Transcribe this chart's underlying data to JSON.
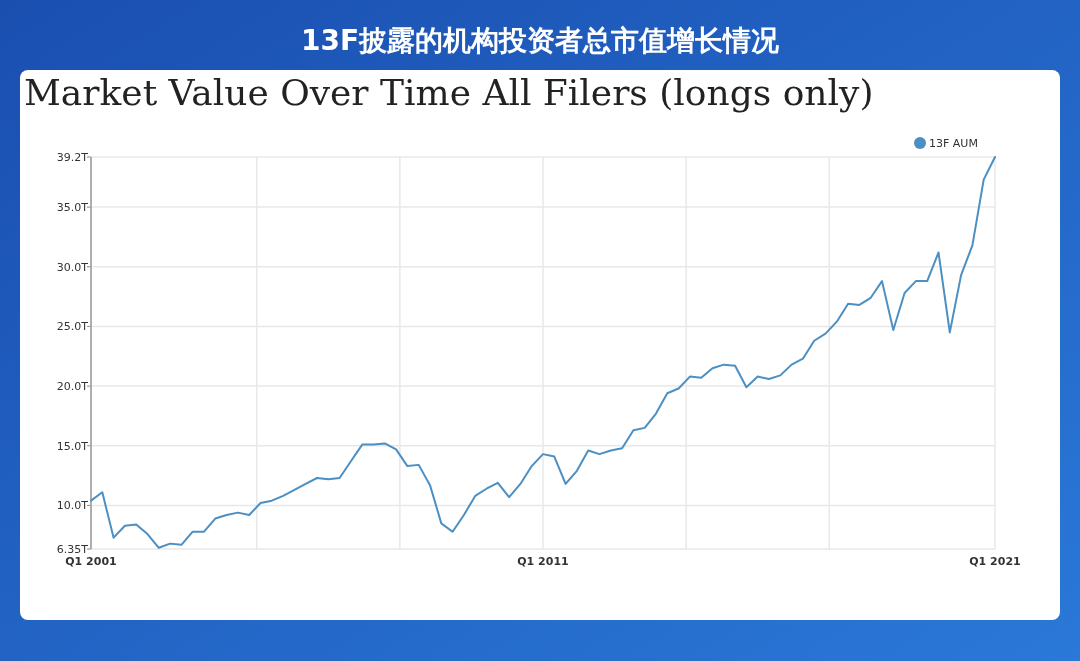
{
  "chart_data": {
    "type": "line",
    "title": "13F披露的机构投资者总市值增长情况",
    "subtitle": "Market Value Over Time All Filers (longs only)",
    "x": [
      "2001-01",
      "2001-04",
      "2001-07",
      "2001-10",
      "2002-01",
      "2002-04",
      "2002-07",
      "2002-10",
      "2003-01",
      "2003-04",
      "2003-07",
      "2003-10",
      "2004-01",
      "2004-04",
      "2004-07",
      "2004-10",
      "2005-01",
      "2005-04",
      "2005-07",
      "2005-10",
      "2006-01",
      "2006-04",
      "2006-07",
      "2006-10",
      "2007-01",
      "2007-04",
      "2007-07",
      "2007-10",
      "2008-01",
      "2008-04",
      "2008-07",
      "2008-10",
      "2009-01",
      "2009-04",
      "2009-07",
      "2009-10",
      "2010-01",
      "2010-04",
      "2010-07",
      "2010-10",
      "2011-01",
      "2011-04",
      "2011-07",
      "2011-10",
      "2012-01",
      "2012-04",
      "2012-07",
      "2012-10",
      "2013-01",
      "2013-04",
      "2013-07",
      "2013-10",
      "2014-01",
      "2014-04",
      "2014-07",
      "2014-10",
      "2015-01",
      "2015-04",
      "2015-07",
      "2015-10",
      "2016-01",
      "2016-04",
      "2016-07",
      "2016-10",
      "2017-01",
      "2017-04",
      "2017-07",
      "2017-10",
      "2018-01",
      "2018-04",
      "2018-07",
      "2018-10",
      "2019-01",
      "2019-04",
      "2019-07",
      "2019-10",
      "2020-01",
      "2020-04",
      "2020-07",
      "2020-10",
      "2021-01"
    ],
    "series": [
      {
        "name": "13F AUM",
        "color": "#4b8fc3",
        "values": [
          10.4,
          11.1,
          7.3,
          8.3,
          8.4,
          7.6,
          6.45,
          6.8,
          6.7,
          7.8,
          7.8,
          8.9,
          9.2,
          9.4,
          9.2,
          10.2,
          10.4,
          10.8,
          11.3,
          11.8,
          12.3,
          12.2,
          12.3,
          13.7,
          15.1,
          15.1,
          15.2,
          14.7,
          13.3,
          13.4,
          11.7,
          8.5,
          7.8,
          9.2,
          10.8,
          11.4,
          11.9,
          10.7,
          11.8,
          13.3,
          14.3,
          14.1,
          11.8,
          12.9,
          14.6,
          14.3,
          14.6,
          14.8,
          16.3,
          16.5,
          17.7,
          19.4,
          19.8,
          20.8,
          20.7,
          21.5,
          21.8,
          21.7,
          19.9,
          20.8,
          20.6,
          20.9,
          21.8,
          22.3,
          23.8,
          24.4,
          25.4,
          26.9,
          26.8,
          27.4,
          28.8,
          24.7,
          27.8,
          28.8,
          28.8,
          31.2,
          24.5,
          29.3,
          31.8,
          37.3,
          39.2
        ]
      }
    ],
    "xlim": [
      "2001-01",
      "2021-01"
    ],
    "xticks": [
      {
        "value": "2001-01",
        "label": "Q1 2001"
      },
      {
        "value": "2004-09",
        "label": null
      },
      {
        "value": "2007-11",
        "label": null
      },
      {
        "value": "2011-01",
        "label": "Q1 2011"
      },
      {
        "value": "2014-03",
        "label": null
      },
      {
        "value": "2017-05",
        "label": null
      },
      {
        "value": "2021-01",
        "label": "Q1 2021"
      }
    ],
    "ylim": [
      6.35,
      39.2
    ],
    "yticks": [
      {
        "value": 6.35,
        "label": "6.35T"
      },
      {
        "value": 10,
        "label": "10.0T"
      },
      {
        "value": 15,
        "label": "15.0T"
      },
      {
        "value": 20,
        "label": "20.0T"
      },
      {
        "value": 25,
        "label": "25.0T"
      },
      {
        "value": 30,
        "label": "30.0T"
      },
      {
        "value": 35,
        "label": "35.0T"
      },
      {
        "value": 39.2,
        "label": "39.2T"
      }
    ],
    "grid": true,
    "legend": "top right",
    "marker": "none",
    "line_style": "solid"
  }
}
